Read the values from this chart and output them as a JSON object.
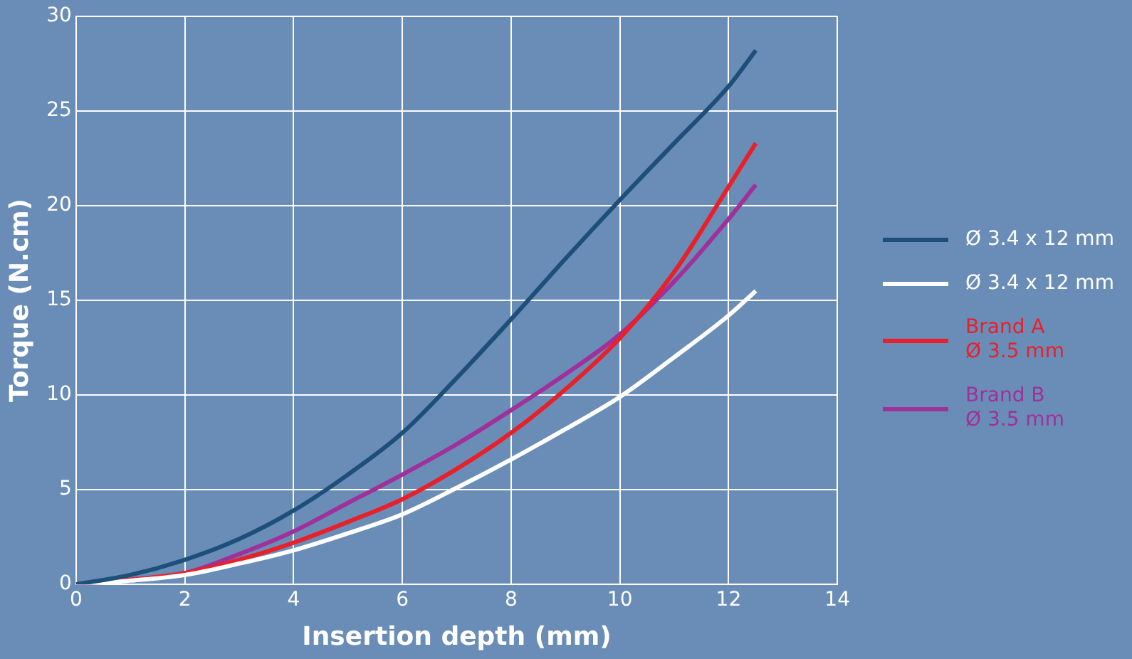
{
  "chart_data": {
    "type": "line",
    "xlabel": "Insertion depth (mm)",
    "ylabel": "Torque (N.cm)",
    "x": [
      0,
      1,
      2,
      3,
      4,
      5,
      6,
      7,
      8,
      9,
      10,
      11,
      12,
      12.5
    ],
    "series": [
      {
        "name": "Ø 3.4 x 12 mm",
        "color": "#1d4f7a",
        "values": [
          0,
          0.5,
          1.3,
          2.4,
          3.9,
          5.8,
          8,
          10.9,
          14,
          17.2,
          20.3,
          23.3,
          26.3,
          28.2
        ]
      },
      {
        "name": "Ø 3.4 x 12 mm",
        "color": "#ffffff",
        "values": [
          0,
          0.2,
          0.5,
          1.1,
          1.8,
          2.7,
          3.7,
          5.1,
          6.6,
          8.2,
          9.9,
          12,
          14.2,
          15.5
        ]
      },
      {
        "name": "Brand A\nØ 3.5 mm",
        "color": "#e8202a",
        "values": [
          0,
          null,
          0.6,
          1.3,
          2.2,
          3.3,
          4.5,
          6.1,
          8,
          10.3,
          13,
          16.5,
          21,
          23.3
        ]
      },
      {
        "name": "Brand B\nØ 3.5 mm",
        "color": "#a0309a",
        "values": [
          0,
          null,
          0.6,
          1.6,
          2.8,
          4.3,
          5.8,
          7.4,
          9.2,
          11.1,
          13.2,
          16,
          19.3,
          21.1
        ]
      }
    ],
    "xlim": [
      0,
      14
    ],
    "xticks": [
      0,
      2,
      4,
      6,
      8,
      10,
      12,
      14
    ],
    "ylim": [
      0,
      30
    ],
    "yticks": [
      0,
      5,
      10,
      15,
      20,
      25,
      30
    ],
    "grid": true,
    "legend": "right",
    "marker": "none",
    "line_style": "solid"
  }
}
